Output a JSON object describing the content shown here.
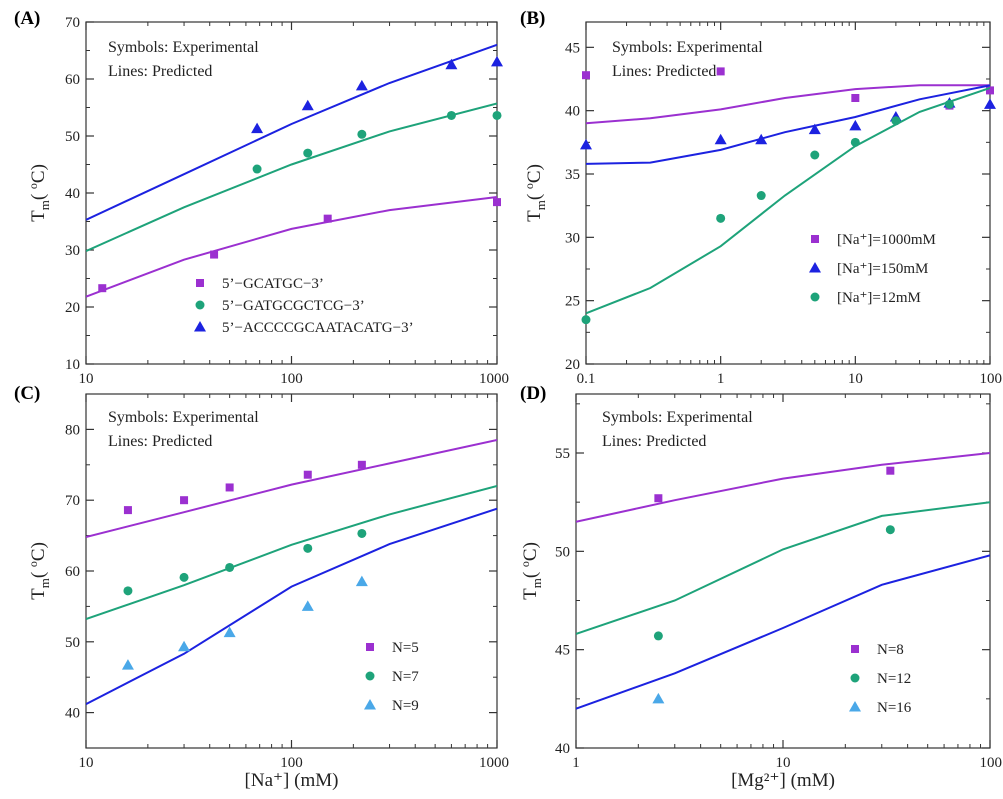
{
  "panels_note": "four panels",
  "colors": {
    "purple": "#9b30d0",
    "green": "#1ea37a",
    "blue": "#1c22e0",
    "lightblue": "#4aa8e8",
    "axis": "#333333"
  },
  "chart_data": [
    {
      "panel": "(A)",
      "type": "scatter",
      "xscale": "log",
      "xlim": [
        10,
        1000
      ],
      "ylim": [
        10,
        70
      ],
      "xticks": [
        "10",
        "100",
        "1000"
      ],
      "yticks": [
        "10",
        "20",
        "30",
        "40",
        "50",
        "60",
        "70"
      ],
      "xlabel": "",
      "ylabel": "Tm(°C)",
      "notes": [
        "Symbols: Experimental",
        "Lines: Predicted"
      ],
      "legend_loc": "bottom-right",
      "series": [
        {
          "name": "5’−GCATGC−3’",
          "color": "#9b30d0",
          "marker": "square",
          "points": {
            "x": [
              12,
              42,
              150,
              1000
            ],
            "y": [
              23.3,
              29.2,
              35.5,
              38.4
            ]
          },
          "line": {
            "x": [
              10,
              30,
              100,
              300,
              1000
            ],
            "y": [
              21.8,
              28.3,
              33.7,
              37.0,
              39.3
            ]
          }
        },
        {
          "name": "5’−GATGCGCTCG−3’",
          "color": "#1ea37a",
          "marker": "circle",
          "points": {
            "x": [
              68,
              120,
              220,
              600,
              1000
            ],
            "y": [
              44.2,
              47.0,
              50.3,
              53.6,
              53.6
            ]
          },
          "line": {
            "x": [
              10,
              30,
              100,
              300,
              1000
            ],
            "y": [
              29.8,
              37.5,
              45.0,
              50.8,
              55.7
            ]
          }
        },
        {
          "name": "5’−ACCCCGCAATACATG−3’",
          "color": "#1c22e0",
          "marker": "triangle",
          "points": {
            "x": [
              68,
              120,
              220,
              600,
              1000
            ],
            "y": [
              51.3,
              55.3,
              58.8,
              62.5,
              63.0
            ]
          },
          "line": {
            "x": [
              10,
              30,
              100,
              300,
              1000
            ],
            "y": [
              35.3,
              43.3,
              52.1,
              59.3,
              66.0
            ]
          }
        }
      ]
    },
    {
      "panel": "(B)",
      "type": "scatter",
      "xscale": "log",
      "xlim": [
        0.1,
        100
      ],
      "ylim": [
        20,
        47
      ],
      "xticks": [
        "0.1",
        "1",
        "10",
        "100"
      ],
      "yticks": [
        "20",
        "25",
        "30",
        "35",
        "40",
        "45"
      ],
      "xlabel": "",
      "ylabel": "Tm(°C)",
      "notes": [
        "Symbols: Experimental",
        "Lines: Predicted"
      ],
      "legend_loc": "center-right",
      "series": [
        {
          "name": "[Na⁺]=1000mM",
          "color": "#9b30d0",
          "marker": "square",
          "points": {
            "x": [
              0.1,
              1,
              10,
              50,
              100
            ],
            "y": [
              42.8,
              43.1,
              41.0,
              40.4,
              41.6
            ]
          },
          "line": {
            "x": [
              0.1,
              0.3,
              1,
              3,
              10,
              30,
              100
            ],
            "y": [
              39.0,
              39.4,
              40.1,
              41.0,
              41.7,
              42.0,
              42.0
            ]
          }
        },
        {
          "name": "[Na⁺]=150mM",
          "color": "#1c22e0",
          "marker": "triangle",
          "points": {
            "x": [
              0.1,
              1,
              2,
              5,
              10,
              20,
              50,
              100
            ],
            "y": [
              37.3,
              37.7,
              37.7,
              38.5,
              38.8,
              39.5,
              40.6,
              40.5
            ]
          },
          "line": {
            "x": [
              0.1,
              0.3,
              1,
              3,
              10,
              30,
              100
            ],
            "y": [
              35.8,
              35.9,
              36.9,
              38.3,
              39.5,
              40.9,
              42.0
            ]
          }
        },
        {
          "name": "[Na⁺]=12mM",
          "color": "#1ea37a",
          "marker": "circle",
          "points": {
            "x": [
              0.1,
              1,
              2,
              5,
              10,
              20,
              50
            ],
            "y": [
              23.5,
              31.5,
              33.3,
              36.5,
              37.5,
              39.2,
              40.5
            ]
          },
          "line": {
            "x": [
              0.1,
              0.3,
              1,
              3,
              10,
              30,
              100
            ],
            "y": [
              24.0,
              26.0,
              29.3,
              33.3,
              37.2,
              39.9,
              41.8
            ]
          }
        }
      ]
    },
    {
      "panel": "(C)",
      "type": "scatter",
      "xscale": "log",
      "xlim": [
        10,
        1000
      ],
      "ylim": [
        35,
        85
      ],
      "xticks": [
        "10",
        "100",
        "1000"
      ],
      "yticks": [
        "40",
        "50",
        "60",
        "70",
        "80"
      ],
      "xlabel": "[Na⁺] (mM)",
      "ylabel": "Tm(°C)",
      "notes": [
        "Symbols: Experimental",
        "Lines: Predicted"
      ],
      "legend_loc": "bottom-right",
      "series": [
        {
          "name": "N=5",
          "color": "#9b30d0",
          "marker": "square",
          "points": {
            "x": [
              16,
              30,
              50,
              120,
              220
            ],
            "y": [
              68.6,
              70.0,
              71.8,
              73.6,
              75.0
            ]
          },
          "line": {
            "x": [
              10,
              30,
              100,
              300,
              1000
            ],
            "y": [
              64.8,
              68.3,
              72.2,
              75.2,
              78.5
            ]
          }
        },
        {
          "name": "N=7",
          "color": "#1ea37a",
          "marker": "circle",
          "points": {
            "x": [
              16,
              30,
              50,
              120,
              220
            ],
            "y": [
              57.2,
              59.1,
              60.5,
              63.2,
              65.3
            ]
          },
          "line": {
            "x": [
              10,
              30,
              100,
              300,
              1000
            ],
            "y": [
              53.2,
              58.0,
              63.7,
              68.0,
              72.0
            ]
          }
        },
        {
          "name": "N=9",
          "color": "#4aa8e8",
          "marker": "triangle",
          "points": {
            "x": [
              16,
              30,
              50,
              120,
              220
            ],
            "y": [
              46.7,
              49.3,
              51.3,
              55.0,
              58.5
            ]
          },
          "line": {
            "x": [
              10,
              30,
              100,
              300,
              1000
            ],
            "y": [
              41.2,
              48.3,
              57.8,
              63.8,
              68.8
            ]
          },
          "line_color": "#1c22e0"
        }
      ]
    },
    {
      "panel": "(D)",
      "type": "scatter",
      "xscale": "log",
      "xlim": [
        1,
        100
      ],
      "ylim": [
        40,
        58
      ],
      "xticks": [
        "1",
        "10",
        "100"
      ],
      "yticks": [
        "40",
        "45",
        "50",
        "55"
      ],
      "xlabel": "[Mg²⁺] (mM)",
      "ylabel": "Tm(°C)",
      "notes": [
        "Symbols: Experimental",
        "Lines: Predicted"
      ],
      "legend_loc": "bottom-right",
      "series": [
        {
          "name": "N=8",
          "color": "#9b30d0",
          "marker": "square",
          "points": {
            "x": [
              2.5,
              33
            ],
            "y": [
              52.7,
              54.1
            ]
          },
          "line": {
            "x": [
              1,
              3,
              10,
              30,
              100
            ],
            "y": [
              51.5,
              52.6,
              53.7,
              54.4,
              55.0
            ]
          }
        },
        {
          "name": "N=12",
          "color": "#1ea37a",
          "marker": "circle",
          "points": {
            "x": [
              2.5,
              33
            ],
            "y": [
              45.7,
              51.1
            ]
          },
          "line": {
            "x": [
              1,
              3,
              10,
              30,
              100
            ],
            "y": [
              45.8,
              47.5,
              50.1,
              51.8,
              52.5
            ]
          }
        },
        {
          "name": "N=16",
          "color": "#4aa8e8",
          "marker": "triangle",
          "points": {
            "x": [
              2.5,
              33
            ],
            "y": [
              42.5,
              51.1
            ]
          },
          "points_override": {
            "x": [
              2.5
            ],
            "y": [
              42.5
            ]
          },
          "line": {
            "x": [
              1,
              3,
              10,
              30,
              100
            ],
            "y": [
              42.0,
              43.8,
              46.1,
              48.3,
              49.8
            ]
          },
          "line_color": "#1c22e0"
        }
      ]
    }
  ]
}
